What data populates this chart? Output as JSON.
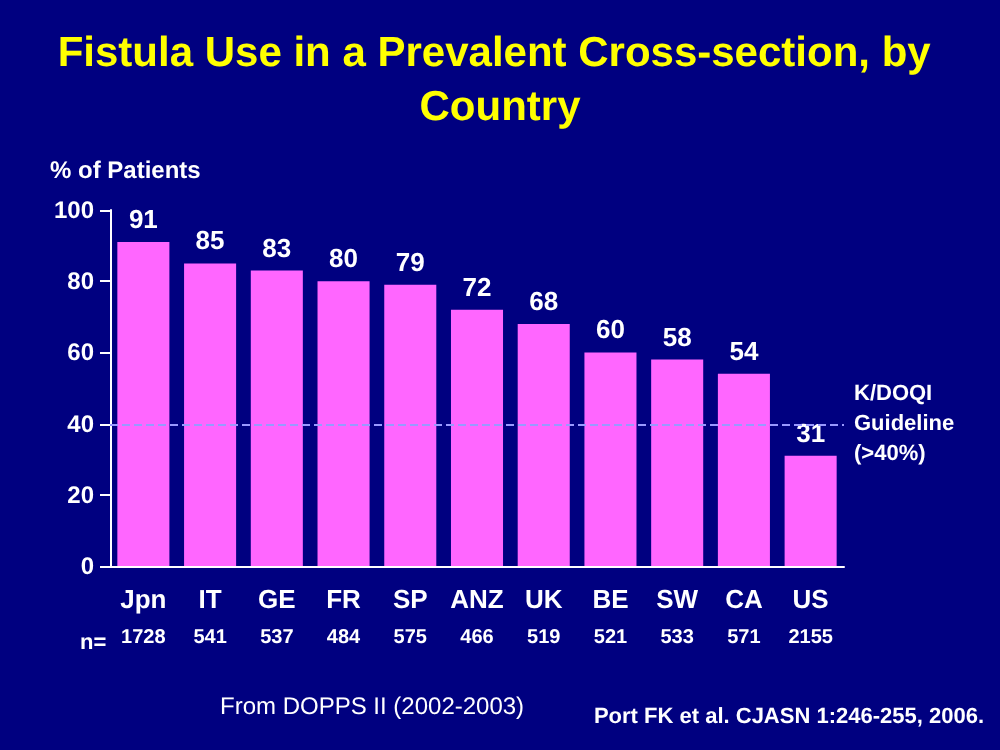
{
  "chart_data": {
    "type": "bar",
    "title": "Fistula Use in a Prevalent Cross-section, by Country",
    "ylabel": "% of Patients",
    "categories": [
      "Jpn",
      "IT",
      "GE",
      "FR",
      "SP",
      "ANZ",
      "UK",
      "BE",
      "SW",
      "CA",
      "US"
    ],
    "values": [
      91,
      85,
      83,
      80,
      79,
      72,
      68,
      60,
      58,
      54,
      31
    ],
    "color": "#ff66ff",
    "data_labels": true,
    "ylim": [
      0,
      100
    ],
    "yticks": [
      0,
      20,
      40,
      60,
      80,
      100
    ],
    "grid": false,
    "ref_lines": [
      {
        "axis": "y",
        "value": 40,
        "label": "K/DOQI Guideline (>40%)",
        "color": "#9999ff",
        "line_style": "dashed"
      }
    ],
    "annotations": [
      "n=",
      "1728",
      "541",
      "537",
      "484",
      "575",
      "466",
      "519",
      "521",
      "533",
      "571",
      "2155",
      "From DOPPS II (2002-2003)",
      "Port FK et al. CJASN 1:246-255, 2006."
    ]
  }
}
